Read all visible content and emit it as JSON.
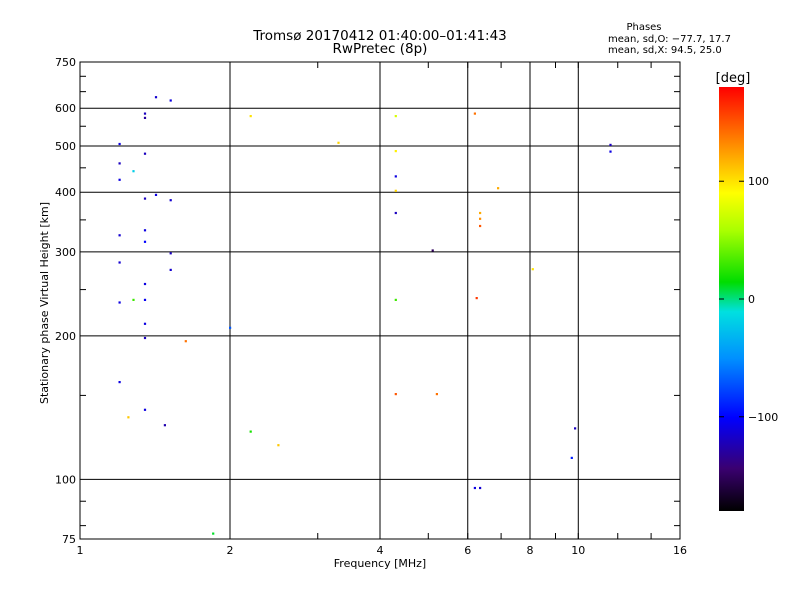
{
  "chart_data": {
    "type": "scatter",
    "title": "Tromsø 20170412 01:40:00–01:41:43",
    "subtitle": "RwPretec (8p)",
    "stats": {
      "heading": "Phases",
      "line1": "mean, sd,O: −77.7, 17.7",
      "line2": "mean, sd,X:  94.5, 25.0"
    },
    "xlabel": "Frequency [MHz]",
    "ylabel": "Stationary phase Virtual Height [km]",
    "xscale": "log",
    "yscale": "log",
    "xlim": [
      1,
      16
    ],
    "ylim": [
      75,
      750
    ],
    "xticks": [
      1,
      2,
      4,
      6,
      8,
      10,
      16
    ],
    "xtick_labels": [
      "1",
      "2",
      "4",
      "6",
      "8",
      "10",
      "16"
    ],
    "yticks": [
      75,
      100,
      200,
      300,
      400,
      500,
      600,
      750
    ],
    "ytick_labels": [
      "75",
      "100",
      "200",
      "300",
      "400",
      "500",
      "600",
      "750"
    ],
    "grid_x": [
      2,
      4,
      6,
      8,
      10
    ],
    "grid_y": [
      100,
      200,
      300,
      400,
      500,
      600
    ],
    "colorbar": {
      "label": "[deg]",
      "range": [
        -180,
        180
      ],
      "ticks": [
        100,
        0,
        -100
      ],
      "tick_labels": [
        "100",
        "0",
        "−100"
      ]
    },
    "points": [
      [
        1.2,
        505,
        -110
      ],
      [
        1.2,
        460,
        -120
      ],
      [
        1.2,
        425,
        -110
      ],
      [
        1.2,
        325,
        -115
      ],
      [
        1.2,
        285,
        -115
      ],
      [
        1.2,
        235,
        -110
      ],
      [
        1.2,
        160,
        -110
      ],
      [
        1.35,
        585,
        -120
      ],
      [
        1.35,
        573,
        -130
      ],
      [
        1.35,
        482,
        -120
      ],
      [
        1.35,
        388,
        -120
      ],
      [
        1.35,
        333,
        -110
      ],
      [
        1.35,
        315,
        -100
      ],
      [
        1.35,
        257,
        -110
      ],
      [
        1.35,
        238,
        -105
      ],
      [
        1.35,
        212,
        -110
      ],
      [
        1.35,
        198,
        -120
      ],
      [
        1.35,
        140,
        -110
      ],
      [
        1.28,
        443,
        -20
      ],
      [
        1.28,
        238,
        30
      ],
      [
        1.25,
        135,
        110
      ],
      [
        1.42,
        633,
        -115
      ],
      [
        1.42,
        395,
        -110
      ],
      [
        1.52,
        623,
        -110
      ],
      [
        1.52,
        385,
        -115
      ],
      [
        1.52,
        298,
        -120
      ],
      [
        1.52,
        275,
        -115
      ],
      [
        1.48,
        130,
        -125
      ],
      [
        1.63,
        195,
        140
      ],
      [
        1.85,
        77,
        10
      ],
      [
        2.0,
        208,
        -70
      ],
      [
        2.2,
        578,
        100
      ],
      [
        2.2,
        126,
        20
      ],
      [
        2.5,
        118,
        110
      ],
      [
        3.3,
        508,
        105
      ],
      [
        4.3,
        578,
        75
      ],
      [
        4.3,
        488,
        95
      ],
      [
        4.3,
        432,
        -110
      ],
      [
        4.3,
        403,
        105
      ],
      [
        4.3,
        362,
        -120
      ],
      [
        4.3,
        238,
        30
      ],
      [
        4.3,
        151,
        150
      ],
      [
        5.1,
        302,
        -150
      ],
      [
        5.2,
        151,
        140
      ],
      [
        6.2,
        585,
        140
      ],
      [
        6.35,
        362,
        120
      ],
      [
        6.35,
        352,
        130
      ],
      [
        6.35,
        340,
        150
      ],
      [
        6.25,
        240,
        160
      ],
      [
        6.9,
        408,
        120
      ],
      [
        8.1,
        276,
        100
      ],
      [
        6.2,
        96,
        -110
      ],
      [
        6.35,
        96,
        -115
      ],
      [
        9.7,
        111,
        -90
      ],
      [
        9.85,
        128,
        -120
      ],
      [
        11.6,
        503,
        -120
      ],
      [
        11.6,
        487,
        -110
      ]
    ]
  }
}
